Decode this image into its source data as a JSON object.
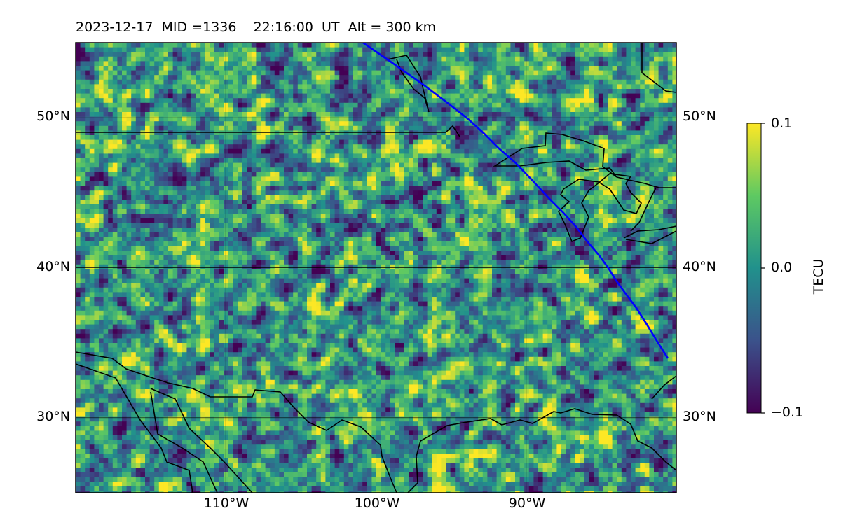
{
  "title": "2023-12-17  MID =1336    22:16:00  UT  Alt = 300 km",
  "map": {
    "lon_range": [
      -120,
      -80
    ],
    "lat_range": [
      25,
      55
    ],
    "lat_ticks": [
      {
        "value": 50,
        "label": "50°N"
      },
      {
        "value": 40,
        "label": "40°N"
      },
      {
        "value": 30,
        "label": "30°N"
      }
    ],
    "lon_ticks": [
      {
        "value": -110,
        "label": "110°W"
      },
      {
        "value": -100,
        "label": "100°W"
      },
      {
        "value": -90,
        "label": "90°W"
      }
    ],
    "gridlines": true,
    "track_color": "#0000ff",
    "coastline_color": "#000000",
    "colormap": "viridis"
  },
  "colorbar": {
    "label": "TECU",
    "ticks": [
      {
        "value": 0.1,
        "label": "0.1"
      },
      {
        "value": 0.0,
        "label": "0.0"
      },
      {
        "value": -0.1,
        "label": "−0.1"
      }
    ],
    "range": [
      -0.1,
      0.1
    ]
  },
  "colors": {
    "viridis_low": "#440154",
    "viridis_mid": "#21918c",
    "viridis_high": "#fde725"
  }
}
